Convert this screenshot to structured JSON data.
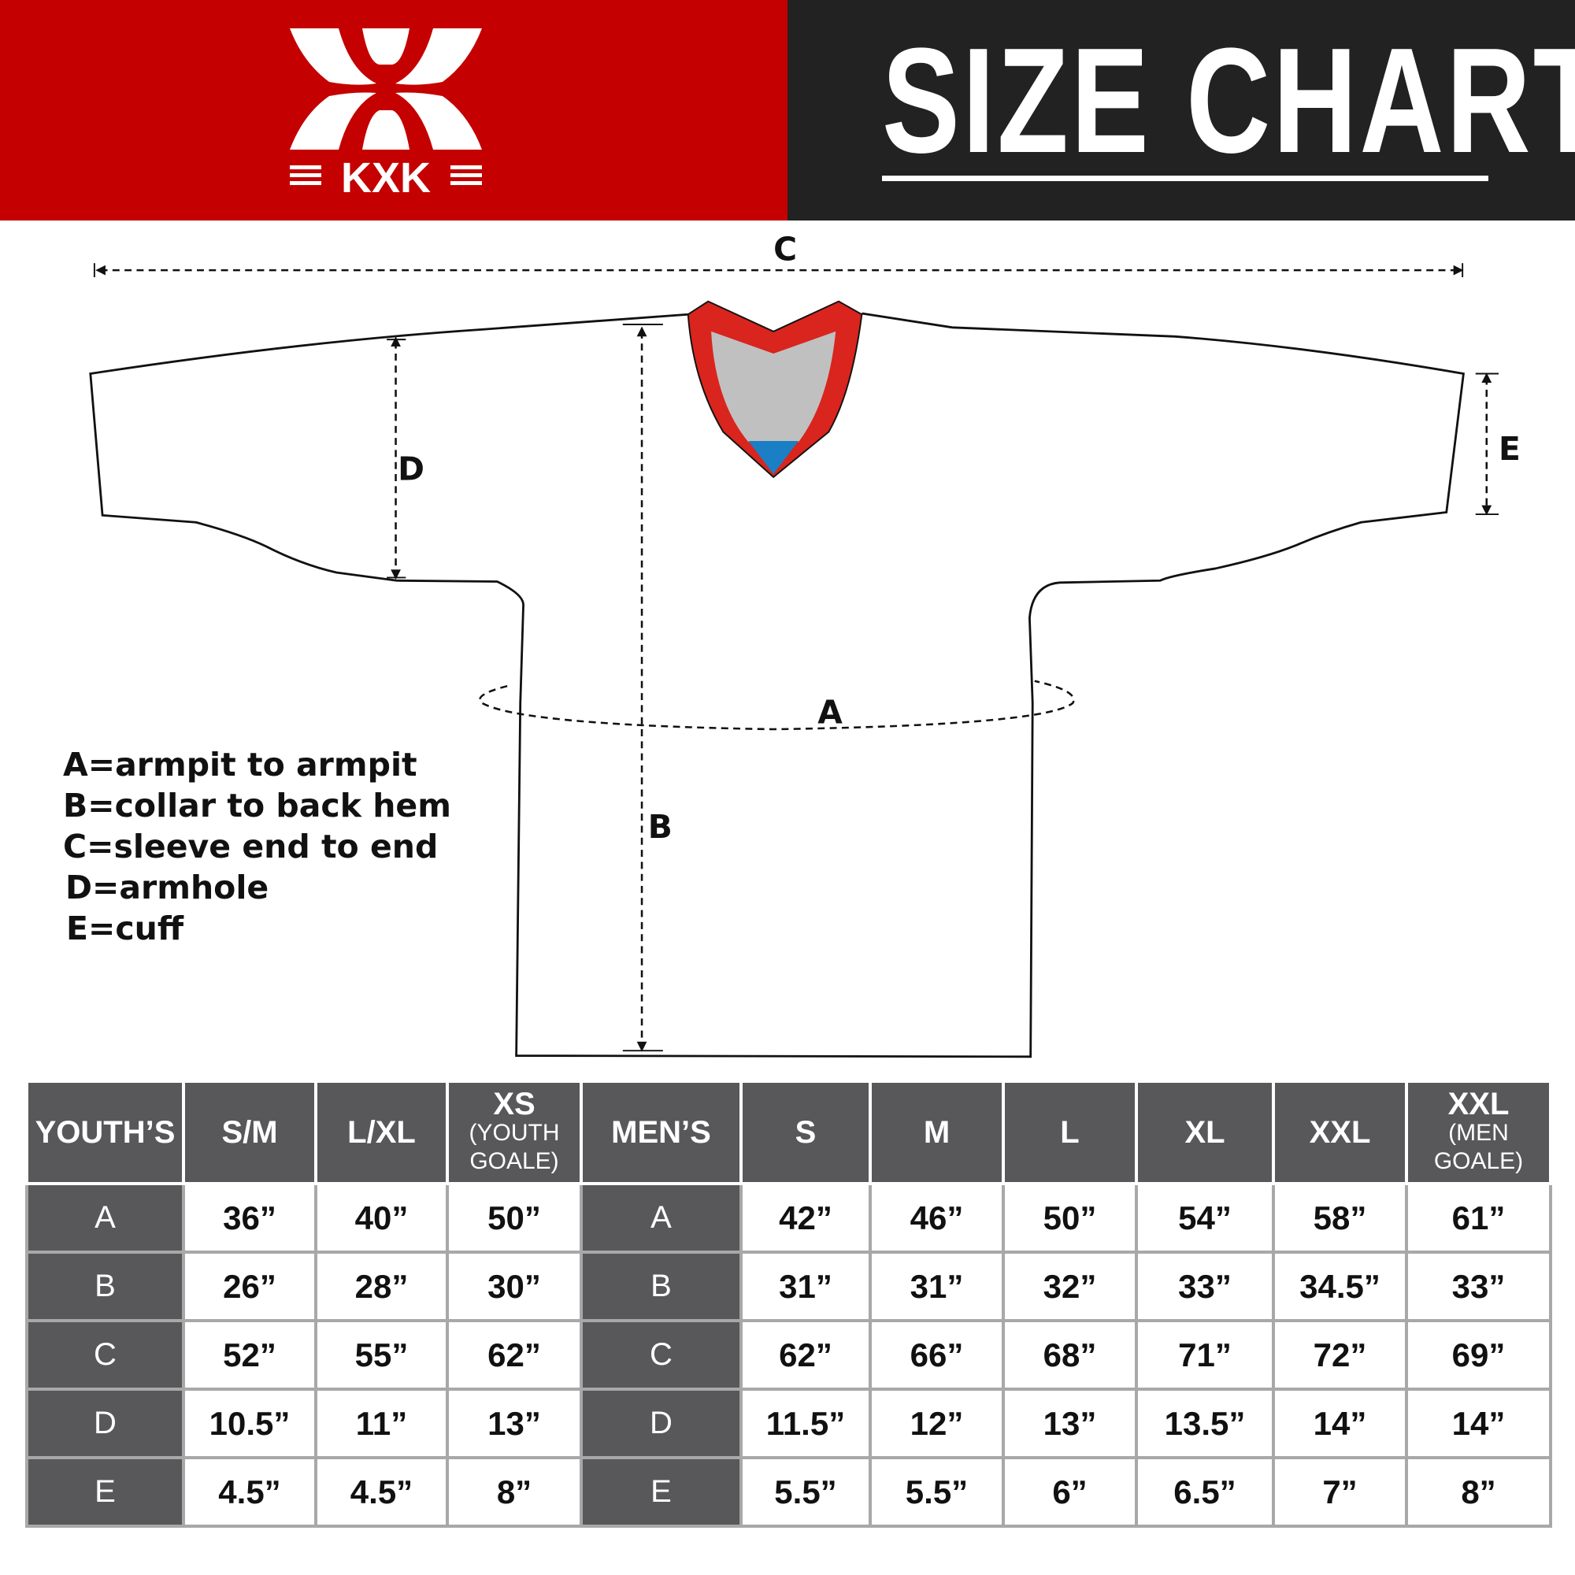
{
  "header": {
    "title": "SIZE CHART",
    "brand": "KXK",
    "colors": {
      "red": "#c40000",
      "dark": "#222222",
      "table_header": "#58585a"
    }
  },
  "diagram": {
    "labels": {
      "A": "A",
      "B": "B",
      "C": "C",
      "D": "D",
      "E": "E"
    },
    "collar_colors": {
      "trim": "#d9251d",
      "inner": "#c0c0c0",
      "tag": "#1a7fc4"
    }
  },
  "legend": [
    "A=armpit to armpit",
    "B=collar to back hem",
    "C=sleeve end to end",
    "D=armhole",
    "E=cuff"
  ],
  "table": {
    "youth_header": "YOUTH’S",
    "youth_sizes": [
      {
        "main": "S/M",
        "sub": ""
      },
      {
        "main": "L/XL",
        "sub": ""
      },
      {
        "main": "XS",
        "sub": "(YOUTH GOALE)"
      }
    ],
    "men_header": "MEN’S",
    "men_sizes": [
      {
        "main": "S",
        "sub": ""
      },
      {
        "main": "M",
        "sub": ""
      },
      {
        "main": "L",
        "sub": ""
      },
      {
        "main": "XL",
        "sub": ""
      },
      {
        "main": "XXL",
        "sub": ""
      },
      {
        "main": "XXL",
        "sub": "(MEN GOALE)"
      }
    ],
    "rows": [
      {
        "label": "A",
        "youth": [
          "36”",
          "40”",
          "50”"
        ],
        "men": [
          "42”",
          "46”",
          "50”",
          "54”",
          "58”",
          "61”"
        ]
      },
      {
        "label": "B",
        "youth": [
          "26”",
          "28”",
          "30”"
        ],
        "men": [
          "31”",
          "31”",
          "32”",
          "33”",
          "34.5”",
          "33”"
        ]
      },
      {
        "label": "C",
        "youth": [
          "52”",
          "55”",
          "62”"
        ],
        "men": [
          "62”",
          "66”",
          "68”",
          "71”",
          "72”",
          "69”"
        ]
      },
      {
        "label": "D",
        "youth": [
          "10.5”",
          "11”",
          "13”"
        ],
        "men": [
          "11.5”",
          "12”",
          "13”",
          "13.5”",
          "14”",
          "14”"
        ]
      },
      {
        "label": "E",
        "youth": [
          "4.5”",
          "4.5”",
          "8”"
        ],
        "men": [
          "5.5”",
          "5.5”",
          "6”",
          "6.5”",
          "7”",
          "8”"
        ]
      }
    ]
  }
}
